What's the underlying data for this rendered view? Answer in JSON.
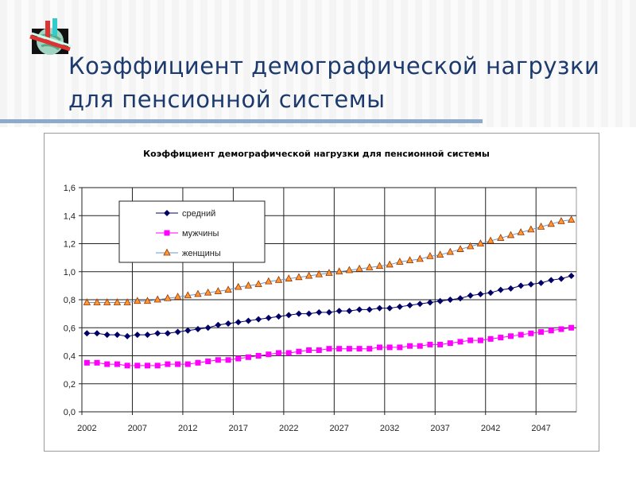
{
  "slide": {
    "title_line1": "Коэффициент демографической нагрузки",
    "title_line2": "для пенсионной системы",
    "logo": "globe-logo-icon"
  },
  "colors": {
    "title": "#1c3a6e",
    "divider": "#8eaacb",
    "avg": "#000066",
    "men": "#ff00ff",
    "women": "#ff9933",
    "women_line": "#6699cc"
  },
  "chart_data": {
    "type": "line",
    "title": "Коэффициент демографической нагрузки для пенсионной системы",
    "xlabel": "",
    "ylabel": "",
    "ylim": [
      0,
      1.6
    ],
    "yticks": [
      "0,0",
      "0,2",
      "0,4",
      "0,6",
      "0,8",
      "1,0",
      "1,2",
      "1,4",
      "1,6"
    ],
    "xtick_labels": [
      "2002",
      "2007",
      "2012",
      "2017",
      "2022",
      "2027",
      "2032",
      "2037",
      "2042",
      "2047"
    ],
    "x_start": 2002,
    "x_end": 2050,
    "grid": true,
    "legend_position": "top-left",
    "series": [
      {
        "name": "средний",
        "marker": "diamond",
        "values": [
          0.56,
          0.56,
          0.55,
          0.55,
          0.54,
          0.55,
          0.55,
          0.56,
          0.56,
          0.57,
          0.58,
          0.59,
          0.6,
          0.62,
          0.63,
          0.64,
          0.65,
          0.66,
          0.67,
          0.68,
          0.69,
          0.7,
          0.7,
          0.71,
          0.71,
          0.72,
          0.72,
          0.73,
          0.73,
          0.74,
          0.74,
          0.75,
          0.76,
          0.77,
          0.78,
          0.79,
          0.8,
          0.81,
          0.83,
          0.84,
          0.85,
          0.87,
          0.88,
          0.9,
          0.91,
          0.92,
          0.94,
          0.95,
          0.97
        ]
      },
      {
        "name": "мужчины",
        "marker": "square",
        "values": [
          0.35,
          0.35,
          0.34,
          0.34,
          0.33,
          0.33,
          0.33,
          0.33,
          0.34,
          0.34,
          0.34,
          0.35,
          0.36,
          0.37,
          0.37,
          0.38,
          0.39,
          0.4,
          0.41,
          0.42,
          0.42,
          0.43,
          0.44,
          0.44,
          0.45,
          0.45,
          0.45,
          0.45,
          0.45,
          0.46,
          0.46,
          0.46,
          0.47,
          0.47,
          0.48,
          0.48,
          0.49,
          0.5,
          0.51,
          0.51,
          0.52,
          0.53,
          0.54,
          0.55,
          0.56,
          0.57,
          0.58,
          0.59,
          0.6
        ]
      },
      {
        "name": "женщины",
        "marker": "triangle",
        "values": [
          0.78,
          0.78,
          0.78,
          0.78,
          0.78,
          0.79,
          0.79,
          0.8,
          0.81,
          0.82,
          0.83,
          0.84,
          0.85,
          0.86,
          0.87,
          0.89,
          0.9,
          0.91,
          0.93,
          0.94,
          0.95,
          0.96,
          0.97,
          0.98,
          0.99,
          1.0,
          1.01,
          1.02,
          1.03,
          1.04,
          1.05,
          1.07,
          1.08,
          1.09,
          1.11,
          1.12,
          1.14,
          1.16,
          1.18,
          1.2,
          1.22,
          1.24,
          1.26,
          1.28,
          1.3,
          1.32,
          1.34,
          1.36,
          1.37
        ]
      }
    ]
  }
}
